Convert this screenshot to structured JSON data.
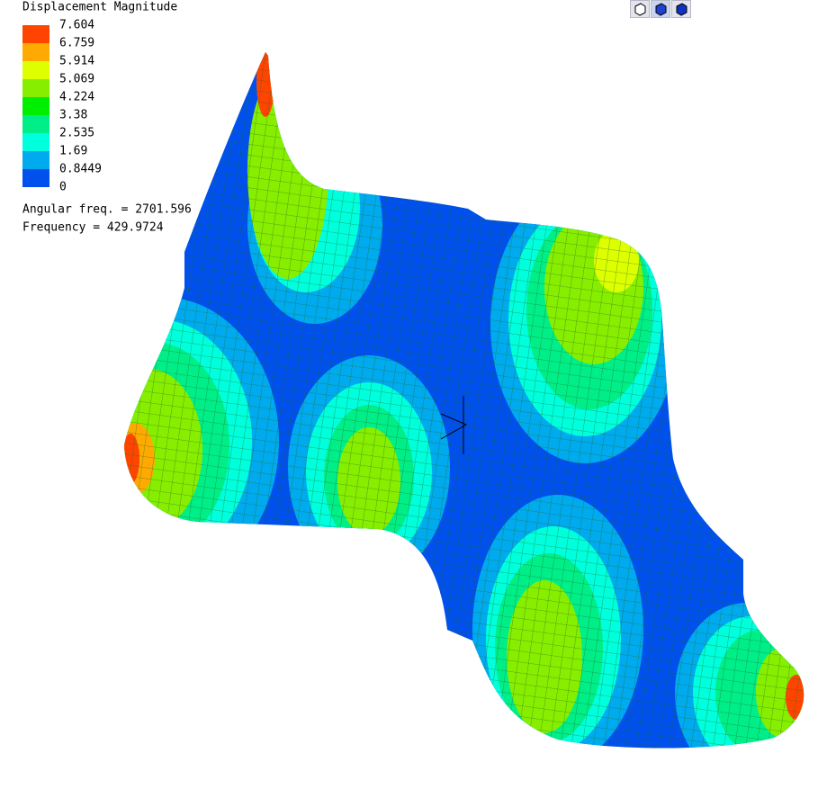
{
  "legend": {
    "title": "Displacement Magnitude",
    "labels": [
      "7.604",
      "6.759",
      "5.914",
      "5.069",
      "4.224",
      "3.38",
      "2.535",
      "1.69",
      "0.8449",
      "0"
    ],
    "colors": [
      "#ff4400",
      "#ffaa00",
      "#ddff00",
      "#88ee00",
      "#00ee00",
      "#00ee88",
      "#00ffdd",
      "#00aaee",
      "#0050ee"
    ]
  },
  "info": {
    "angular_freq": "Angular freq. = 2701.596",
    "frequency": "Frequency = 429.9724"
  }
}
